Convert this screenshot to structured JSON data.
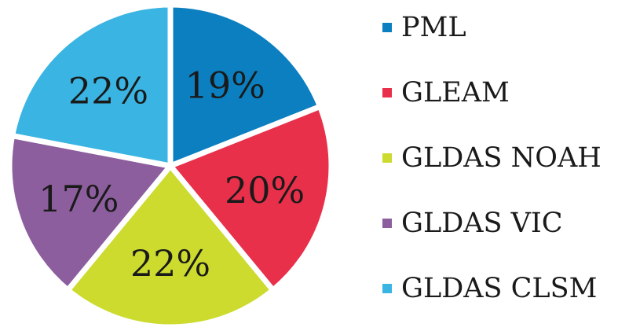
{
  "chart_data": {
    "type": "pie",
    "categories": [
      "PML",
      "GLEAM",
      "GLDAS NOAH",
      "GLDAS VIC",
      "GLDAS CLSM"
    ],
    "values": [
      19,
      20,
      22,
      17,
      22
    ],
    "data_labels": [
      "19%",
      "20%",
      "22%",
      "17%",
      "22%"
    ],
    "colors": [
      "#0b7fc0",
      "#e8304a",
      "#ccdb2e",
      "#8c5e9e",
      "#3ab4e2"
    ],
    "start_angle_deg": 0,
    "direction": "clockwise",
    "legend_position": "right",
    "title": ""
  }
}
